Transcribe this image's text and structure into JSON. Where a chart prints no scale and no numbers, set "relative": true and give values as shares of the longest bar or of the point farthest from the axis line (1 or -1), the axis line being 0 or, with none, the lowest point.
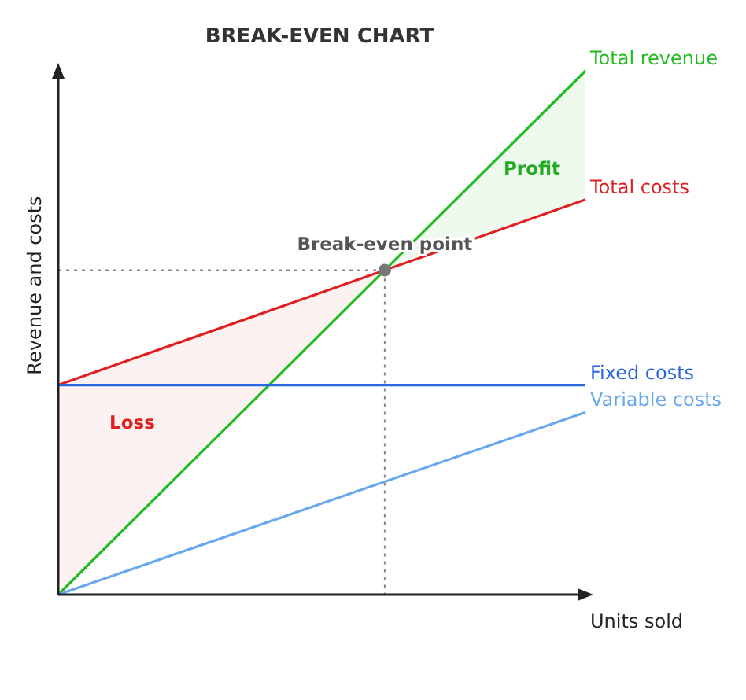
{
  "chart_data": {
    "type": "line",
    "title": "BREAK-EVEN CHART",
    "xlabel": "Units sold",
    "ylabel": "Revenue and costs",
    "relative": true,
    "categories": [
      null,
      null
    ],
    "series": [
      {
        "name": "Total revenue",
        "color": "#22bb22",
        "values": [
          0,
          1
        ]
      },
      {
        "name": "Total costs",
        "color": "#e02020",
        "values": [
          0.4,
          0.754
        ]
      },
      {
        "name": "Fixed costs",
        "color": "#2a66e0",
        "values": [
          0.4,
          0.4
        ]
      },
      {
        "name": "Variable costs",
        "color": "#6aa8ee",
        "values": [
          0,
          0.348
        ]
      }
    ],
    "annotations": [
      "Break-even point",
      "Profit",
      "Loss"
    ]
  }
}
